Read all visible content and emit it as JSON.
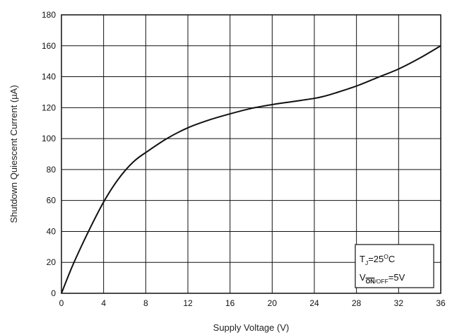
{
  "chart_data": {
    "type": "line",
    "title": "",
    "xlabel": "Supply Voltage (V)",
    "ylabel": "Shutdown Quiescent Current (µA)",
    "xlim": [
      0,
      36
    ],
    "ylim": [
      0,
      180
    ],
    "xticks": [
      "0",
      "4",
      "8",
      "12",
      "16",
      "20",
      "24",
      "28",
      "32",
      "36"
    ],
    "yticks": [
      "0",
      "20",
      "40",
      "60",
      "80",
      "100",
      "120",
      "140",
      "160",
      "180"
    ],
    "grid": true,
    "legend_position": "bottom-right",
    "series": [
      {
        "x": [
          0,
          1,
          2,
          3,
          4,
          5,
          6,
          7,
          8,
          10,
          12,
          14,
          16,
          18,
          20,
          22,
          24,
          25,
          26,
          28,
          30,
          32,
          34,
          36
        ],
        "y": [
          0,
          17,
          32,
          46,
          59,
          70,
          79,
          86,
          91,
          100,
          107,
          112,
          116,
          119.5,
          122,
          124,
          126,
          127.5,
          129.5,
          134,
          139.5,
          145,
          152,
          160
        ]
      }
    ],
    "annotation": {
      "line1_main": "T",
      "line1_sub": "J",
      "line1_rest": "=25",
      "line1_sup": "O",
      "line1_end": "C",
      "line2_main": "V",
      "line2_sub_over": "ON",
      "line2_sub": "/OFF",
      "line2_rest": "=5V"
    }
  }
}
